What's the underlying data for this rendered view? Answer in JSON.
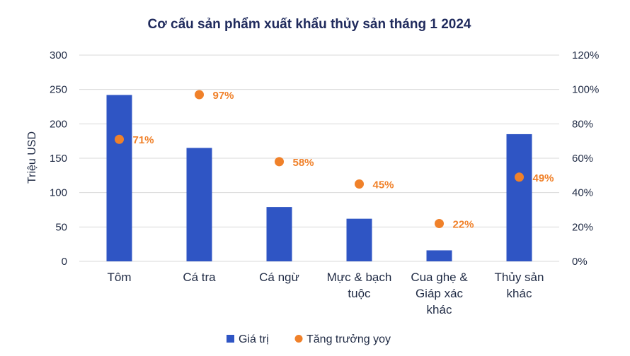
{
  "chart_data": {
    "type": "bar",
    "title": "Cơ cấu sản phẩm xuất khẩu thủy sản tháng 1 2024",
    "ylabel": "Triệu USD",
    "ylim": [
      0,
      300
    ],
    "y_ticks": [
      "0",
      "50",
      "100",
      "150",
      "200",
      "250",
      "300"
    ],
    "y2lim": [
      0,
      1.2
    ],
    "y2_ticks": [
      "0%",
      "20%",
      "40%",
      "60%",
      "80%",
      "100%",
      "120%"
    ],
    "grid": true,
    "legend_position": "bottom",
    "categories": [
      [
        "Tôm"
      ],
      [
        "Cá tra"
      ],
      [
        "Cá ngừ"
      ],
      [
        "Mực & bạch",
        "tuộc"
      ],
      [
        "Cua ghẹ &",
        "Giáp xác",
        "khác"
      ],
      [
        "Thủy sản",
        "khác"
      ]
    ],
    "series": [
      {
        "name": "Giá trị",
        "type": "bar",
        "axis": "left",
        "color": "#2f55c4",
        "values": [
          242,
          165,
          79,
          62,
          16,
          185
        ]
      },
      {
        "name": "Tăng trưởng yoy",
        "type": "scatter",
        "axis": "right",
        "color": "#f0812a",
        "values": [
          0.71,
          0.97,
          0.58,
          0.45,
          0.22,
          0.49
        ],
        "labels": [
          "71%",
          "97%",
          "58%",
          "45%",
          "22%",
          "49%"
        ]
      }
    ]
  }
}
